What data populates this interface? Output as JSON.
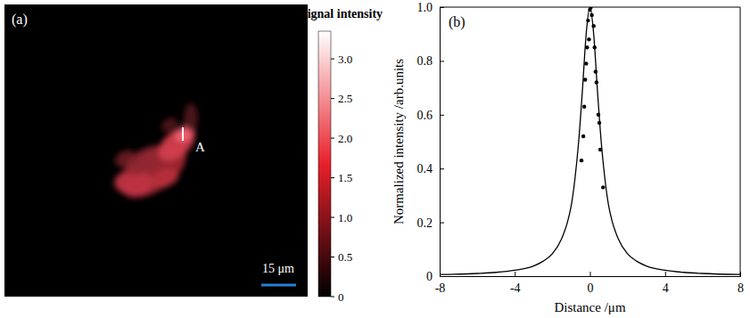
{
  "chart_data": [
    {
      "type": "image",
      "title": "(a)",
      "annotations": [
        "A",
        "15 μm"
      ],
      "colorbar": {
        "label": "Signal intensity",
        "range": [
          0,
          3.35
        ],
        "ticks": [
          0,
          0.5,
          {
            "value": 1,
            "label": "1.0"
          },
          1.5,
          {
            "value": 2,
            "label": "2.0"
          },
          2.5,
          {
            "value": 3,
            "label": "3.0"
          }
        ],
        "colors": [
          "#000000",
          "#e8202a",
          "#ffffff"
        ]
      }
    },
    {
      "type": "line",
      "title": "(b)",
      "x_label": "Distance /μm",
      "y_label": "Normalized intensity /arb.units",
      "xlim": [
        -8,
        8
      ],
      "ylim": [
        0,
        1
      ],
      "xticks": [
        -8,
        -4,
        0,
        4,
        8
      ],
      "yticks": [
        0,
        0.2,
        0.4,
        0.6,
        0.8,
        {
          "value": 1,
          "label": "1.0"
        }
      ],
      "series": [
        {
          "type": "line",
          "color": "#000000",
          "line_style": "solid",
          "x": [
            -8,
            -6,
            -5,
            -4,
            -3,
            -2.5,
            -2,
            -1.5,
            -1.2,
            -1,
            -0.8,
            -0.6,
            -0.4,
            -0.2,
            0,
            0.2,
            0.4,
            0.6,
            0.8,
            1,
            1.2,
            1.5,
            2,
            2.5,
            3,
            4,
            5,
            6,
            8
          ],
          "values": [
            0.006,
            0.01,
            0.014,
            0.022,
            0.038,
            0.055,
            0.083,
            0.14,
            0.2,
            0.26,
            0.36,
            0.5,
            0.69,
            0.9,
            1.0,
            0.9,
            0.69,
            0.5,
            0.36,
            0.26,
            0.2,
            0.14,
            0.083,
            0.055,
            0.038,
            0.022,
            0.014,
            0.01,
            0.006
          ]
        },
        {
          "type": "scatter",
          "color": "#000000",
          "marker": "circle",
          "x": [
            -0.45,
            -0.35,
            -0.3,
            -0.25,
            -0.2,
            -0.15,
            -0.1,
            -0.05,
            0,
            0.05,
            0.1,
            0.2,
            0.25,
            0.3,
            0.35,
            0.45,
            0.5,
            0.55,
            0.7
          ],
          "values": [
            0.43,
            0.52,
            0.63,
            0.73,
            0.79,
            0.85,
            0.95,
            0.88,
            0.99,
            1.0,
            0.97,
            0.93,
            0.85,
            0.76,
            0.72,
            0.6,
            0.57,
            0.47,
            0.33
          ]
        }
      ]
    }
  ]
}
